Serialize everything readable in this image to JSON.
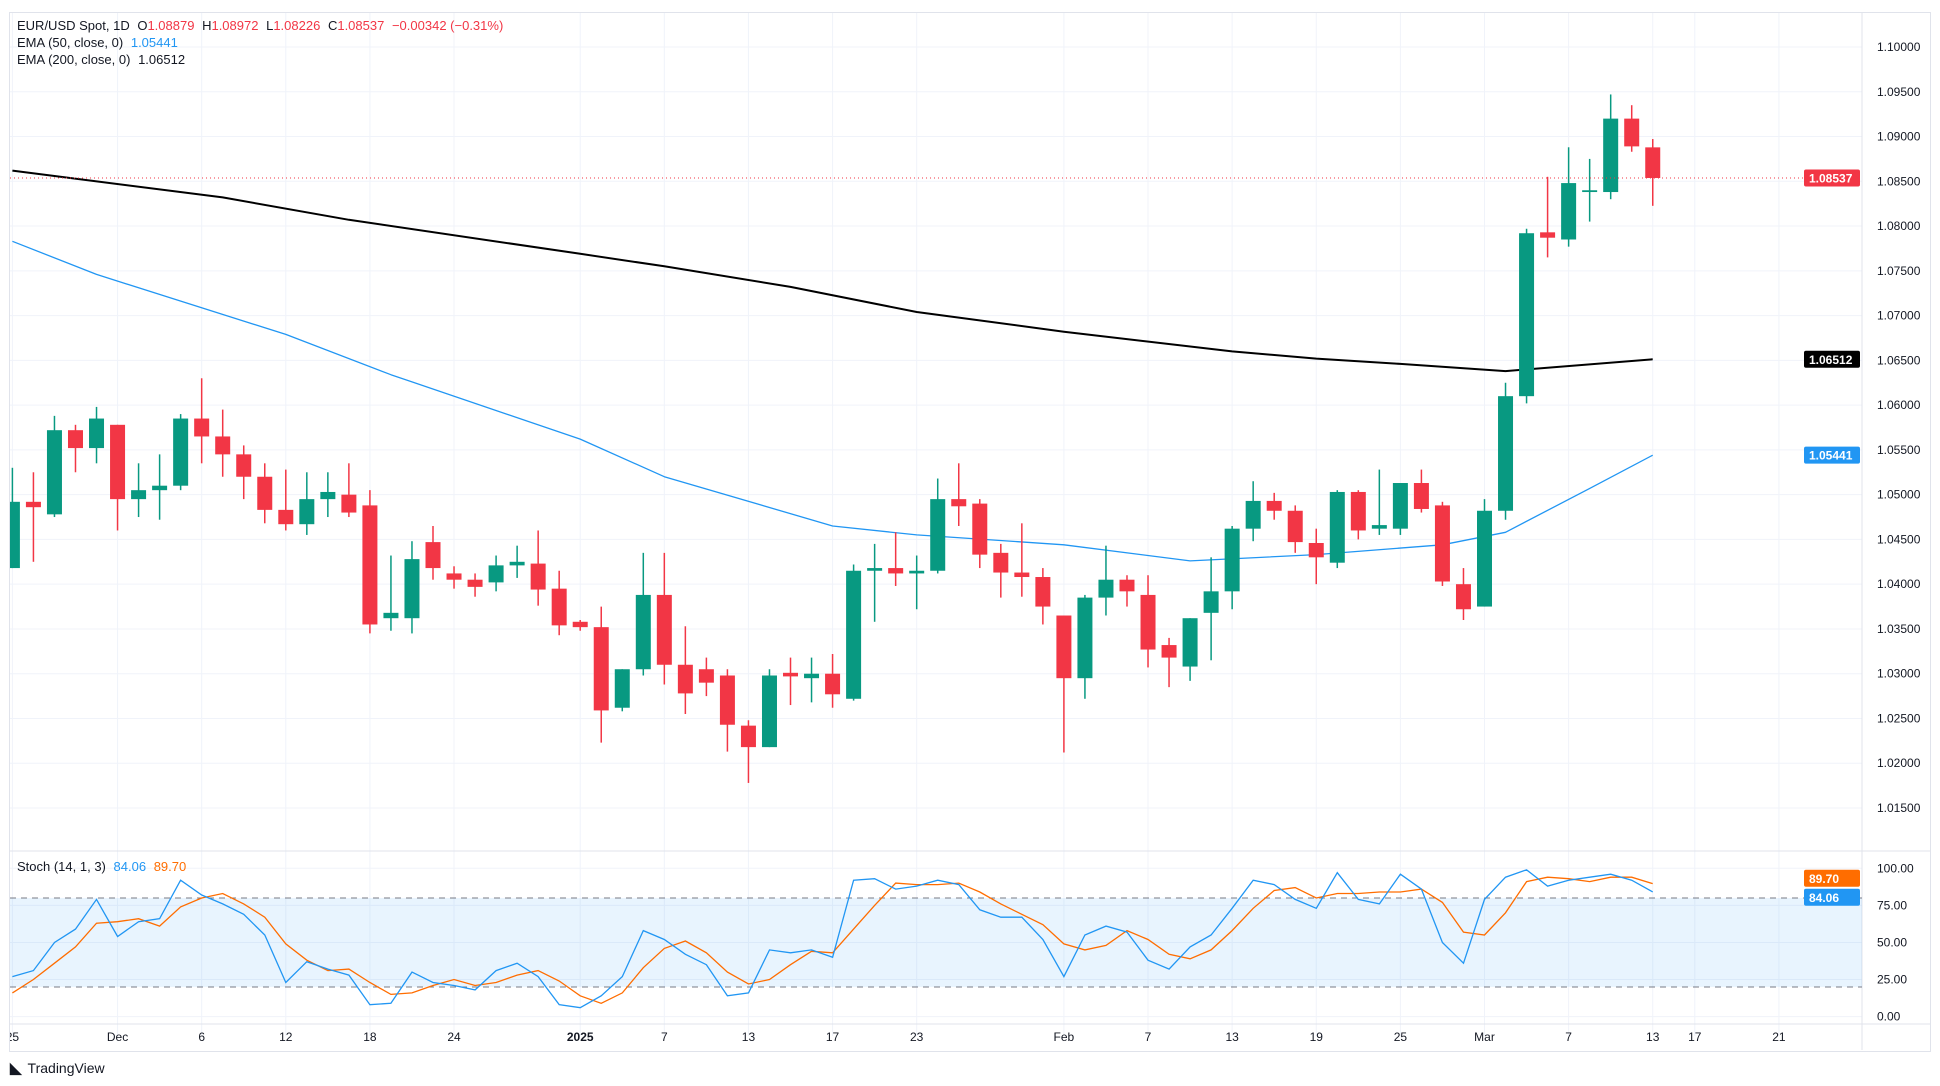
{
  "legend": {
    "symbol": "EUR/USD Spot, 1D",
    "o_label": "O",
    "o": "1.08879",
    "h_label": "H",
    "h": "1.08972",
    "l_label": "L",
    "l": "1.08226",
    "c_label": "C",
    "c": "1.08537",
    "change": "−0.00342 (−0.31%)",
    "ema50_label": "EMA (50, close, 0)",
    "ema50_value": "1.05441",
    "ema200_label": "EMA (200, close, 0)",
    "ema200_value": "1.06512",
    "stoch_label": "Stoch (14, 1, 3)",
    "stoch_k_value": "84.06",
    "stoch_d_value": "89.70"
  },
  "branding": {
    "name": "TradingView"
  },
  "colors": {
    "up": "#089981",
    "down": "#f23645",
    "ema50": "#2196f3",
    "ema200": "#000000",
    "stoch_k": "#2196f3",
    "stoch_d": "#ff6d00",
    "grid": "#f0f3fa"
  },
  "chart_data": {
    "type": "candlestick",
    "symbol": "EUR/USD",
    "interval": "1D",
    "price_axis": {
      "ylim": [
        1.0125,
        1.1015
      ],
      "ticks": [
        "1.10000",
        "1.09500",
        "1.09000",
        "1.08500",
        "1.08000",
        "1.07500",
        "1.07000",
        "1.06500",
        "1.06000",
        "1.05500",
        "1.05000",
        "1.04500",
        "1.04000",
        "1.03500",
        "1.03000",
        "1.02500",
        "1.02000",
        "1.01500"
      ]
    },
    "price_tags": [
      {
        "label": "1.08537",
        "value": 1.08537,
        "color": "#f23645"
      },
      {
        "label": "1.06512",
        "value": 1.06512,
        "color": "#000000"
      },
      {
        "label": "1.05441",
        "value": 1.05441,
        "color": "#2196f3"
      }
    ],
    "time_axis": [
      {
        "label": "25",
        "date": "2024-11-25"
      },
      {
        "label": "Dec",
        "date": "2024-12-02"
      },
      {
        "label": "6",
        "date": "2024-12-06"
      },
      {
        "label": "12",
        "date": "2024-12-12"
      },
      {
        "label": "18",
        "date": "2024-12-18"
      },
      {
        "label": "24",
        "date": "2024-12-24"
      },
      {
        "label": "2025",
        "date": "2025-01-01"
      },
      {
        "label": "7",
        "date": "2025-01-07"
      },
      {
        "label": "13",
        "date": "2025-01-13"
      },
      {
        "label": "17",
        "date": "2025-01-17"
      },
      {
        "label": "23",
        "date": "2025-01-23"
      },
      {
        "label": "Feb",
        "date": "2025-02-03"
      },
      {
        "label": "7",
        "date": "2025-02-07"
      },
      {
        "label": "13",
        "date": "2025-02-13"
      },
      {
        "label": "19",
        "date": "2025-02-19"
      },
      {
        "label": "25",
        "date": "2025-02-25"
      },
      {
        "label": "Mar",
        "date": "2025-03-03"
      },
      {
        "label": "7",
        "date": "2025-03-07"
      },
      {
        "label": "13",
        "date": "2025-03-13"
      },
      {
        "label": "17",
        "date": "2025-03-17"
      },
      {
        "label": "21",
        "date": "2025-03-21"
      }
    ],
    "candles": [
      [
        "2024-11-25",
        1.0418,
        1.053,
        1.0418,
        1.0492
      ],
      [
        "2024-11-26",
        1.0492,
        1.0525,
        1.0425,
        1.0486
      ],
      [
        "2024-11-27",
        1.0478,
        1.0588,
        1.0475,
        1.0572
      ],
      [
        "2024-11-28",
        1.0572,
        1.0578,
        1.0525,
        1.0552
      ],
      [
        "2024-11-29",
        1.0552,
        1.0598,
        1.0535,
        1.0585
      ],
      [
        "2024-12-02",
        1.0578,
        1.0578,
        1.046,
        1.0495
      ],
      [
        "2024-12-03",
        1.0495,
        1.0535,
        1.0475,
        1.0505
      ],
      [
        "2024-12-04",
        1.0505,
        1.0545,
        1.0472,
        1.051
      ],
      [
        "2024-12-05",
        1.051,
        1.059,
        1.0505,
        1.0585
      ],
      [
        "2024-12-06",
        1.0585,
        1.063,
        1.0535,
        1.0565
      ],
      [
        "2024-12-09",
        1.0565,
        1.0595,
        1.052,
        1.0545
      ],
      [
        "2024-12-10",
        1.0545,
        1.0555,
        1.0495,
        1.052
      ],
      [
        "2024-12-11",
        1.052,
        1.0535,
        1.0468,
        1.0483
      ],
      [
        "2024-12-12",
        1.0483,
        1.0528,
        1.046,
        1.0467
      ],
      [
        "2024-12-13",
        1.0467,
        1.0525,
        1.0455,
        1.0495
      ],
      [
        "2024-12-16",
        1.0495,
        1.0525,
        1.0475,
        1.0503
      ],
      [
        "2024-12-17",
        1.05,
        1.0535,
        1.0475,
        1.048
      ],
      [
        "2024-12-18",
        1.0488,
        1.0505,
        1.0345,
        1.0355
      ],
      [
        "2024-12-19",
        1.0362,
        1.0432,
        1.0348,
        1.0368
      ],
      [
        "2024-12-20",
        1.0362,
        1.0448,
        1.0345,
        1.0428
      ],
      [
        "2024-12-23",
        1.0447,
        1.0465,
        1.0405,
        1.0418
      ],
      [
        "2024-12-24",
        1.0412,
        1.042,
        1.0395,
        1.0405
      ],
      [
        "2024-12-25",
        1.0405,
        1.0412,
        1.0386,
        1.0397
      ],
      [
        "2024-12-26",
        1.0402,
        1.0432,
        1.0392,
        1.0421
      ],
      [
        "2024-12-27",
        1.0421,
        1.0443,
        1.0407,
        1.0425
      ],
      [
        "2024-12-30",
        1.0423,
        1.046,
        1.0376,
        1.0394
      ],
      [
        "2024-12-31",
        1.0395,
        1.0415,
        1.0343,
        1.0354
      ],
      [
        "2025-01-01",
        1.0358,
        1.036,
        1.0348,
        1.0352
      ],
      [
        "2025-01-02",
        1.0352,
        1.0375,
        1.0223,
        1.0259
      ],
      [
        "2025-01-03",
        1.0262,
        1.0305,
        1.0258,
        1.0305
      ],
      [
        "2025-01-06",
        1.0305,
        1.0435,
        1.0298,
        1.0388
      ],
      [
        "2025-01-07",
        1.0388,
        1.0435,
        1.0288,
        1.031
      ],
      [
        "2025-01-08",
        1.031,
        1.0353,
        1.0255,
        1.0278
      ],
      [
        "2025-01-09",
        1.0305,
        1.0318,
        1.0275,
        1.029
      ],
      [
        "2025-01-10",
        1.0298,
        1.0305,
        1.0213,
        1.0243
      ],
      [
        "2025-01-13",
        1.0242,
        1.0248,
        1.0178,
        1.0218
      ],
      [
        "2025-01-14",
        1.0218,
        1.0305,
        1.0218,
        1.0298
      ],
      [
        "2025-01-15",
        1.0301,
        1.0318,
        1.0265,
        1.0297
      ],
      [
        "2025-01-16",
        1.0295,
        1.0318,
        1.0268,
        1.03
      ],
      [
        "2025-01-17",
        1.03,
        1.0322,
        1.0262,
        1.0277
      ],
      [
        "2025-01-20",
        1.0272,
        1.0422,
        1.027,
        1.0415
      ],
      [
        "2025-01-21",
        1.0415,
        1.0445,
        1.0358,
        1.0418
      ],
      [
        "2025-01-22",
        1.0418,
        1.0458,
        1.0398,
        1.0412
      ],
      [
        "2025-01-23",
        1.0412,
        1.0432,
        1.0372,
        1.0415
      ],
      [
        "2025-01-24",
        1.0415,
        1.0518,
        1.0412,
        1.0495
      ],
      [
        "2025-01-27",
        1.0495,
        1.0535,
        1.0465,
        1.0487
      ],
      [
        "2025-01-28",
        1.049,
        1.0495,
        1.0418,
        1.0433
      ],
      [
        "2025-01-29",
        1.0435,
        1.0445,
        1.0385,
        1.0413
      ],
      [
        "2025-01-30",
        1.0413,
        1.0468,
        1.0386,
        1.0408
      ],
      [
        "2025-01-31",
        1.0408,
        1.0418,
        1.0355,
        1.0375
      ],
      [
        "2025-02-03",
        1.0365,
        1.0365,
        1.0212,
        1.0295
      ],
      [
        "2025-02-04",
        1.0295,
        1.0388,
        1.0272,
        1.0385
      ],
      [
        "2025-02-05",
        1.0385,
        1.0443,
        1.0365,
        1.0405
      ],
      [
        "2025-02-06",
        1.0405,
        1.041,
        1.0375,
        1.0392
      ],
      [
        "2025-02-07",
        1.0388,
        1.041,
        1.0307,
        1.0327
      ],
      [
        "2025-02-10",
        1.0332,
        1.034,
        1.0285,
        1.0318
      ],
      [
        "2025-02-11",
        1.0308,
        1.0362,
        1.0292,
        1.0362
      ],
      [
        "2025-02-12",
        1.0368,
        1.043,
        1.0315,
        1.0392
      ],
      [
        "2025-02-13",
        1.0392,
        1.0465,
        1.0372,
        1.0462
      ],
      [
        "2025-02-14",
        1.0462,
        1.0515,
        1.0448,
        1.0493
      ],
      [
        "2025-02-17",
        1.0493,
        1.0502,
        1.0472,
        1.0482
      ],
      [
        "2025-02-18",
        1.0482,
        1.0488,
        1.0435,
        1.0447
      ],
      [
        "2025-02-19",
        1.0446,
        1.0462,
        1.04,
        1.043
      ],
      [
        "2025-02-20",
        1.0424,
        1.0505,
        1.0418,
        1.0503
      ],
      [
        "2025-02-21",
        1.0503,
        1.0505,
        1.045,
        1.046
      ],
      [
        "2025-02-24",
        1.0462,
        1.0528,
        1.0455,
        1.0466
      ],
      [
        "2025-02-25",
        1.0462,
        1.0513,
        1.0455,
        1.0513
      ],
      [
        "2025-02-26",
        1.0513,
        1.0528,
        1.048,
        1.0484
      ],
      [
        "2025-02-27",
        1.0488,
        1.0492,
        1.0398,
        1.0403
      ],
      [
        "2025-02-28",
        1.04,
        1.0418,
        1.036,
        1.0372
      ],
      [
        "2025-03-03",
        1.0375,
        1.0495,
        1.0375,
        1.0482
      ],
      [
        "2025-03-04",
        1.0482,
        1.0625,
        1.0472,
        1.061
      ],
      [
        "2025-03-05",
        1.061,
        1.0797,
        1.0602,
        1.0792
      ],
      [
        "2025-03-06",
        1.0793,
        1.0855,
        1.0765,
        1.0787
      ],
      [
        "2025-03-07",
        1.0785,
        1.0888,
        1.0777,
        1.0848
      ],
      [
        "2025-03-10",
        1.0838,
        1.0875,
        1.0805,
        1.084
      ],
      [
        "2025-03-11",
        1.0838,
        1.0947,
        1.083,
        1.092
      ],
      [
        "2025-03-12",
        1.092,
        1.0935,
        1.0883,
        1.0889
      ],
      [
        "2025-03-13",
        1.08879,
        1.08972,
        1.08226,
        1.08537
      ]
    ],
    "candle_columns": [
      "date",
      "open",
      "high",
      "low",
      "close"
    ],
    "ema50": [
      [
        "2024-11-25",
        1.0783
      ],
      [
        "2024-11-29",
        1.0746
      ],
      [
        "2024-12-12",
        1.0679
      ],
      [
        "2024-12-19",
        1.0634
      ],
      [
        "2025-01-01",
        1.0562
      ],
      [
        "2025-01-07",
        1.052
      ],
      [
        "2025-01-17",
        1.0465
      ],
      [
        "2025-01-23",
        1.0455
      ],
      [
        "2025-02-03",
        1.0444
      ],
      [
        "2025-02-11",
        1.0426
      ],
      [
        "2025-02-19",
        1.0433
      ],
      [
        "2025-02-27",
        1.0444
      ],
      [
        "2025-03-04",
        1.0458
      ],
      [
        "2025-03-10",
        1.0507
      ],
      [
        "2025-03-13",
        1.05441
      ]
    ],
    "ema200": [
      [
        "2024-11-25",
        1.0862
      ],
      [
        "2024-12-09",
        1.0832
      ],
      [
        "2024-12-17",
        1.0807
      ],
      [
        "2025-01-01",
        1.0769
      ],
      [
        "2025-01-07",
        1.0755
      ],
      [
        "2025-01-15",
        1.0732
      ],
      [
        "2025-01-23",
        1.0704
      ],
      [
        "2025-02-03",
        1.0682
      ],
      [
        "2025-02-13",
        1.066
      ],
      [
        "2025-02-19",
        1.0652
      ],
      [
        "2025-02-25",
        1.0646
      ],
      [
        "2025-03-04",
        1.0638
      ],
      [
        "2025-03-13",
        1.06512
      ]
    ],
    "stoch": {
      "ylim": [
        0,
        100
      ],
      "ticks": [
        "100.00",
        "75.00",
        "50.00",
        "25.00",
        "0.00"
      ],
      "bands": [
        20,
        80
      ],
      "k": [
        27,
        31,
        50,
        59,
        79,
        54,
        64,
        66,
        92,
        82,
        76,
        69,
        55,
        23,
        37,
        32,
        28,
        8,
        9,
        30,
        23,
        21,
        18,
        31,
        36,
        27,
        8,
        6,
        14,
        27,
        58,
        52,
        42,
        35,
        14,
        16,
        45,
        43,
        45,
        40,
        92,
        93,
        86,
        88,
        92,
        89,
        72,
        67,
        67,
        52,
        27,
        55,
        61,
        57,
        38,
        32,
        47,
        55,
        73,
        92,
        89,
        79,
        73,
        97,
        79,
        76,
        96,
        86,
        50,
        36,
        79,
        94,
        99,
        88,
        92,
        94,
        96,
        92,
        84.06
      ],
      "d": [
        16,
        25,
        36,
        47,
        63,
        64,
        66,
        61,
        74,
        80,
        83,
        76,
        67,
        49,
        38,
        31,
        32,
        23,
        15,
        16,
        21,
        25,
        21,
        23,
        28,
        31,
        24,
        14,
        9,
        16,
        33,
        46,
        51,
        43,
        30,
        22,
        25,
        35,
        44,
        43,
        59,
        75,
        90,
        89,
        89,
        90,
        84,
        76,
        69,
        62,
        49,
        45,
        48,
        58,
        52,
        42,
        39,
        45,
        58,
        73,
        85,
        87,
        80,
        83,
        83,
        84,
        84,
        86,
        77,
        57,
        55,
        70,
        91,
        94,
        93,
        91,
        94,
        94,
        89.7
      ],
      "tags": [
        {
          "label": "89.70",
          "value": 89.7,
          "color": "#ff6d00"
        },
        {
          "label": "84.06",
          "value": 84.06,
          "color": "#2196f3"
        }
      ]
    }
  }
}
